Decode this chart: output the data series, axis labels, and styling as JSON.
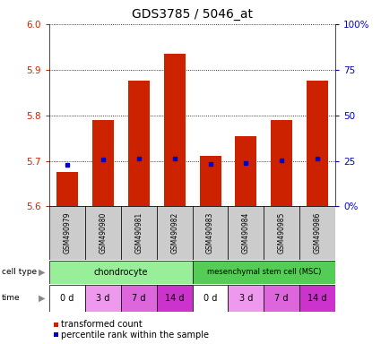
{
  "title": "GDS3785 / 5046_at",
  "samples": [
    "GSM490979",
    "GSM490980",
    "GSM490981",
    "GSM490982",
    "GSM490983",
    "GSM490984",
    "GSM490985",
    "GSM490986"
  ],
  "transformed_count": [
    5.675,
    5.79,
    5.875,
    5.935,
    5.71,
    5.755,
    5.79,
    5.875
  ],
  "percentile_rank": [
    5.692,
    5.703,
    5.705,
    5.705,
    5.694,
    5.696,
    5.701,
    5.705
  ],
  "y_min": 5.6,
  "y_max": 6.0,
  "y_ticks": [
    5.6,
    5.7,
    5.8,
    5.9,
    6.0
  ],
  "right_y_ticks": [
    0,
    25,
    50,
    75,
    100
  ],
  "cell_types": [
    {
      "label": "chondrocyte",
      "start": 0,
      "end": 4,
      "color": "#99ee99"
    },
    {
      "label": "mesenchymal stem cell (MSC)",
      "start": 4,
      "end": 8,
      "color": "#55cc55"
    }
  ],
  "time_labels": [
    "0 d",
    "3 d",
    "7 d",
    "14 d",
    "0 d",
    "3 d",
    "7 d",
    "14 d"
  ],
  "time_colors": [
    "#ffffff",
    "#ee99ee",
    "#dd66dd",
    "#cc33cc",
    "#ffffff",
    "#ee99ee",
    "#dd66dd",
    "#cc33cc"
  ],
  "bar_color": "#cc2200",
  "dot_color": "#0000cc",
  "bar_bottom": 5.6,
  "legend_bar_label": "transformed count",
  "legend_dot_label": "percentile rank within the sample",
  "title_fontsize": 10,
  "axis_color_left": "#cc2200",
  "axis_color_right": "#0000cc",
  "sample_bg_color": "#cccccc"
}
